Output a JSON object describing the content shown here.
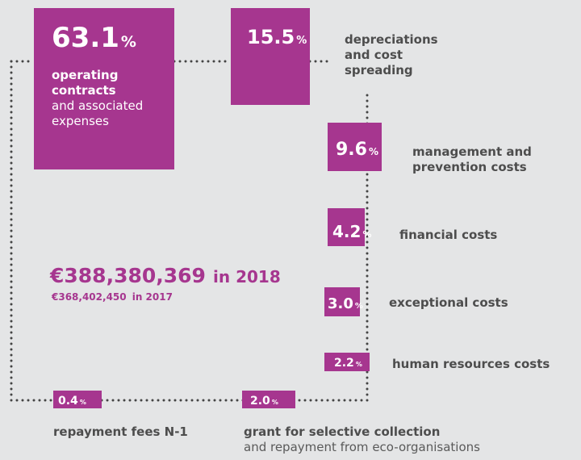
{
  "total": {
    "amount": "€388,380,369",
    "year": "in 2018"
  },
  "previous": {
    "amount": "€368,402,450",
    "year": "in 2017"
  },
  "items": [
    {
      "value": "63.1",
      "unit": "%",
      "label": [
        "operating",
        "contracts"
      ],
      "sublabel": [
        "and associated",
        "expenses"
      ]
    },
    {
      "value": "15.5",
      "unit": "%",
      "label": [
        "depreciations",
        "and cost",
        "spreading"
      ]
    },
    {
      "value": "9.6",
      "unit": "%",
      "label": [
        "management and",
        "prevention costs"
      ]
    },
    {
      "value": "4.2",
      "unit": "%",
      "label": [
        "financial costs"
      ]
    },
    {
      "value": "3.0",
      "unit": "%",
      "label": [
        "exceptional costs"
      ]
    },
    {
      "value": "2.2",
      "unit": "%",
      "label": [
        "human resources costs"
      ]
    },
    {
      "value": "0.4",
      "unit": "%",
      "label": [
        "repayment fees N-1"
      ]
    },
    {
      "value": "2.0",
      "unit": "%",
      "label": [
        "grant for selective collection"
      ],
      "sublabel": [
        "and repayment from eco-organisations"
      ]
    }
  ]
}
